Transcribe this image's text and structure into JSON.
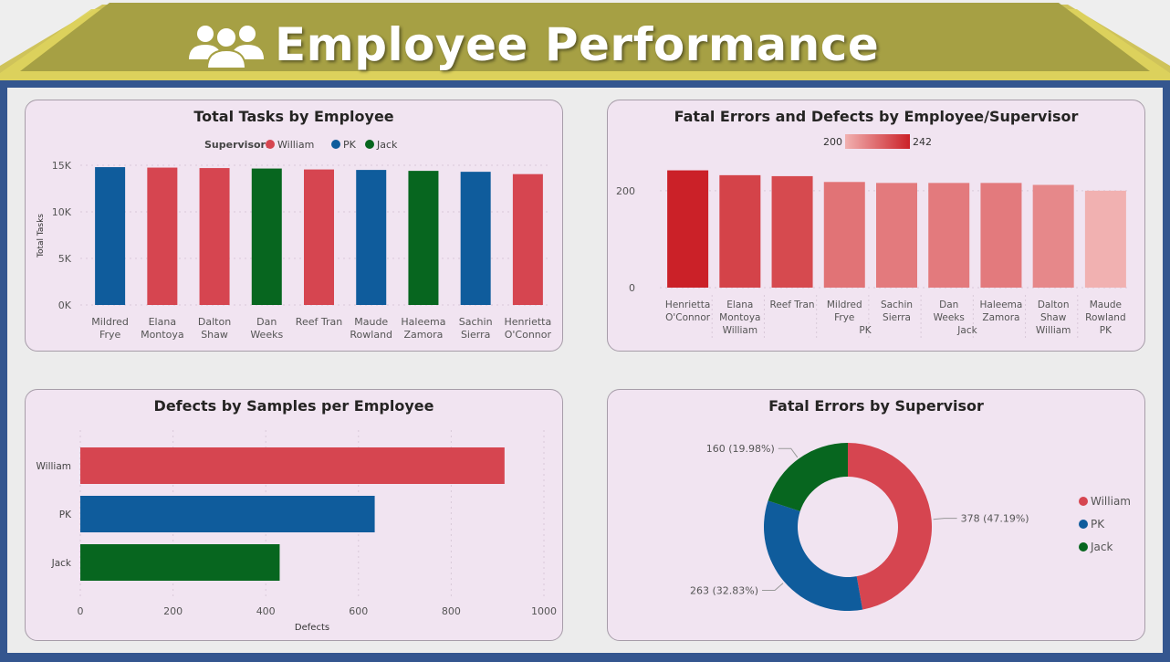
{
  "header": {
    "title": "Employee Performance",
    "icon": "people-group-icon"
  },
  "colors": {
    "William": "#d64550",
    "PK": "#0f5c9c",
    "Jack": "#07661f",
    "grad_low": "#f1b1b1",
    "grad_high": "#cb2128",
    "banner": "#a6a044",
    "frame": "#34568f",
    "panel_bg": "#f1e4f1"
  },
  "panels": {
    "tasks": {
      "title": "Total Tasks by Employee",
      "legend_title": "Supervisor:",
      "chart_data": {
        "type": "bar",
        "ylabel": "Total Tasks",
        "ylim": [
          0,
          15000
        ],
        "yticks": [
          "0K",
          "5K",
          "10K",
          "15K"
        ],
        "categories": [
          [
            "Mildred",
            "Frye"
          ],
          [
            "Elana",
            "Montoya"
          ],
          [
            "Dalton",
            "Shaw"
          ],
          [
            "Dan",
            "Weeks"
          ],
          [
            "Reef Tran"
          ],
          [
            "Maude",
            "Rowland"
          ],
          [
            "Haleema",
            "Zamora"
          ],
          [
            "Sachin",
            "Sierra"
          ],
          [
            "Henrietta",
            "O'Connor"
          ]
        ],
        "values": [
          14800,
          14750,
          14700,
          14650,
          14550,
          14500,
          14400,
          14300,
          14050
        ],
        "supervisor": [
          "PK",
          "William",
          "William",
          "Jack",
          "William",
          "PK",
          "Jack",
          "PK",
          "William"
        ],
        "legend": [
          "William",
          "PK",
          "Jack"
        ]
      }
    },
    "fatal": {
      "title": "Fatal Errors and Defects by Employee/Supervisor",
      "chart_data": {
        "type": "bar",
        "ylim": [
          0,
          260
        ],
        "yticks": [
          "0",
          "200"
        ],
        "color_scale": {
          "min_label": "200",
          "max_label": "242",
          "min": 200,
          "max": 242
        },
        "categories": [
          [
            "Henrietta",
            "O'Connor"
          ],
          [
            "Elana",
            "Montoya",
            "William"
          ],
          [
            "Reef Tran"
          ],
          [
            "Mildred",
            "Frye"
          ],
          [
            "Sachin",
            "Sierra"
          ],
          [
            "Dan",
            "Weeks"
          ],
          [
            "Haleema",
            "Zamora"
          ],
          [
            "Dalton",
            "Shaw",
            "William"
          ],
          [
            "Maude",
            "Rowland",
            "PK"
          ]
        ],
        "values": [
          242,
          232,
          230,
          218,
          216,
          216,
          216,
          212,
          200
        ],
        "group_labels": [
          "PK",
          "Jack"
        ]
      }
    },
    "samples": {
      "title": "Defects by Samples per Employee",
      "chart_data": {
        "type": "bar",
        "orientation": "horizontal",
        "xlabel": "Defects",
        "xlim": [
          0,
          1000
        ],
        "xticks": [
          "0",
          "200",
          "400",
          "600",
          "800",
          "1000"
        ],
        "categories": [
          "William",
          "PK",
          "Jack"
        ],
        "values": [
          915,
          635,
          430
        ]
      }
    },
    "supervisor": {
      "title": "Fatal Errors by Supervisor",
      "chart_data": {
        "type": "pie",
        "donut": true,
        "categories": [
          "William",
          "PK",
          "Jack"
        ],
        "values": [
          378,
          263,
          160
        ],
        "labels": [
          "378 (47.19%)",
          "263 (32.83%)",
          "160 (19.98%)"
        ],
        "legend": [
          "William",
          "PK",
          "Jack"
        ]
      }
    }
  }
}
